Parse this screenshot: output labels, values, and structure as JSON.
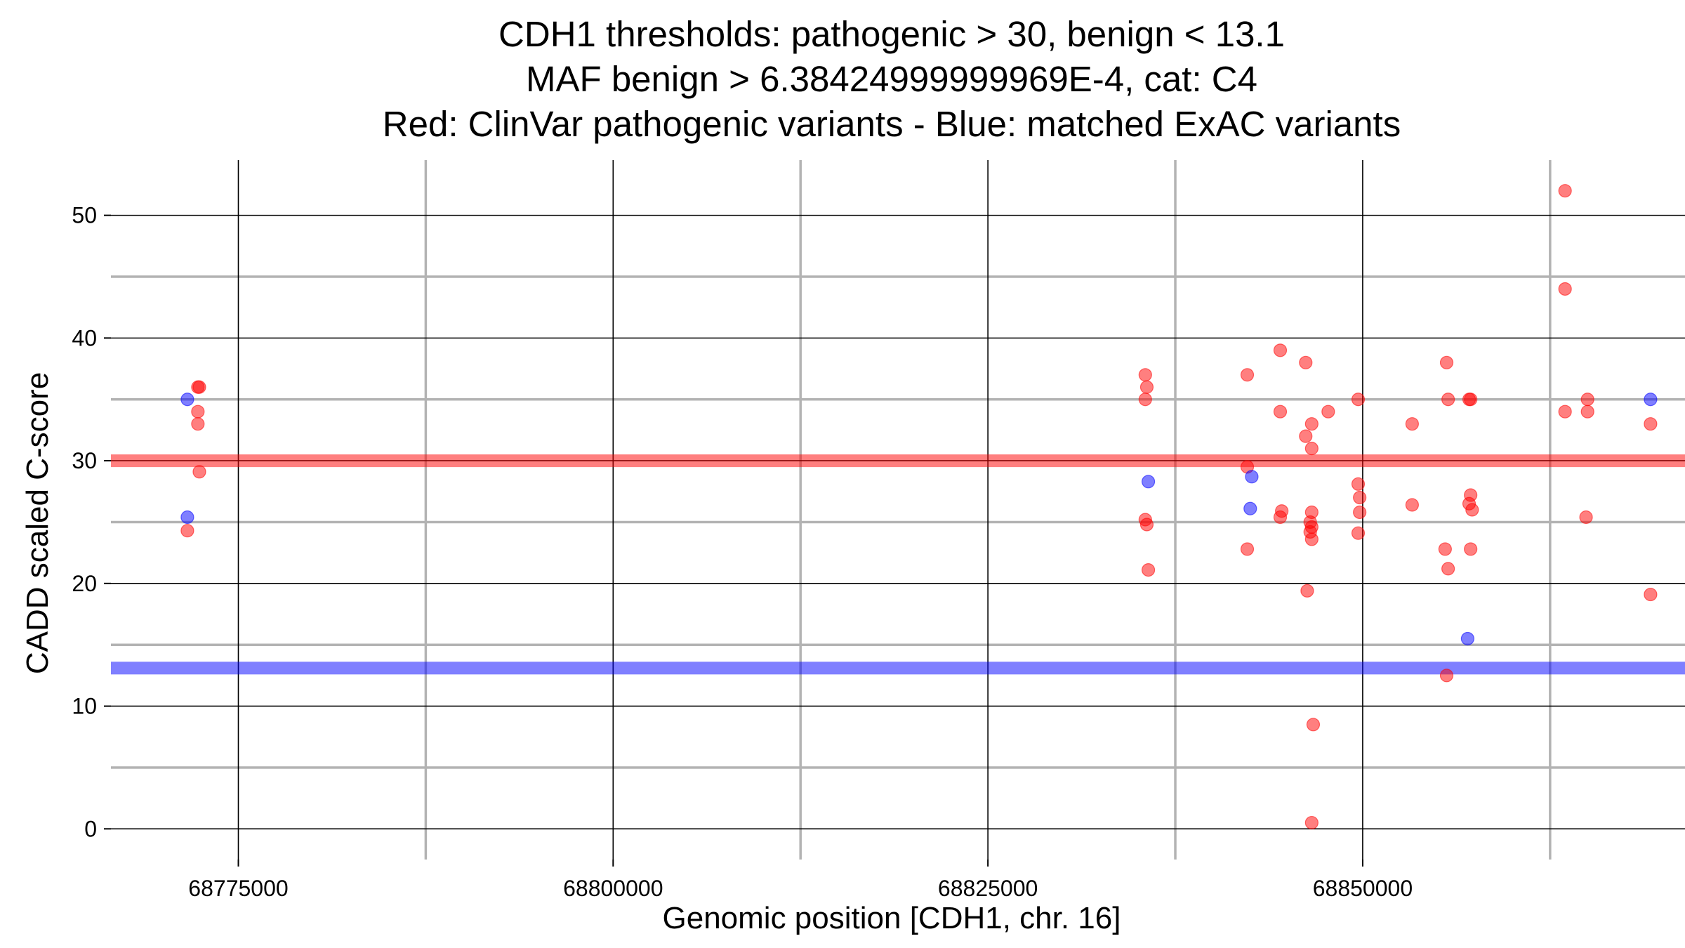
{
  "chart_data": {
    "type": "scatter",
    "title_lines": [
      "CDH1 thresholds: pathogenic > 30, benign < 13.1",
      "MAF benign > 6.38424999999969E-4, cat: C4",
      "Red: ClinVar pathogenic variants - Blue: matched ExAC variants"
    ],
    "xlabel": "Genomic position [CDH1, chr. 16]",
    "ylabel": "CADD scaled C-score",
    "xlim": [
      68766500,
      68871500
    ],
    "ylim": [
      -2.5,
      54.5
    ],
    "x_major_ticks": [
      68775000,
      68800000,
      68825000,
      68850000
    ],
    "x_tick_labels": [
      "68775000",
      "68800000",
      "68825000",
      "68850000"
    ],
    "x_minor_ticks": [
      68787500,
      68812500,
      68837500,
      68862500
    ],
    "y_major_ticks": [
      0,
      10,
      20,
      30,
      40,
      50
    ],
    "y_tick_labels": [
      "0",
      "10",
      "20",
      "30",
      "40",
      "50"
    ],
    "y_minor_ticks": [
      5,
      15,
      25,
      35,
      45
    ],
    "grid": true,
    "thresholds": [
      {
        "name": "pathogenic",
        "value": 30,
        "color": "#ff0000"
      },
      {
        "name": "benign",
        "value": 13.1,
        "color": "#0000ff"
      }
    ],
    "colors": {
      "pathogenic": "#ff0000",
      "benign": "#0000ff"
    },
    "series": [
      {
        "name": "ClinVar pathogenic variants",
        "color": "#ff0000",
        "points": [
          [
            68772300,
            36
          ],
          [
            68772400,
            36
          ],
          [
            68772300,
            34
          ],
          [
            68772300,
            33
          ],
          [
            68772400,
            29.1
          ],
          [
            68771600,
            24.3
          ],
          [
            68835500,
            37
          ],
          [
            68835600,
            36
          ],
          [
            68835500,
            35
          ],
          [
            68835500,
            25.2
          ],
          [
            68835600,
            24.8
          ],
          [
            68835700,
            21.1
          ],
          [
            68842300,
            37
          ],
          [
            68842300,
            29.5
          ],
          [
            68842300,
            22.8
          ],
          [
            68844500,
            39
          ],
          [
            68844500,
            34
          ],
          [
            68844600,
            25.9
          ],
          [
            68844500,
            25.4
          ],
          [
            68846200,
            38
          ],
          [
            68846200,
            32
          ],
          [
            68846600,
            33
          ],
          [
            68846600,
            31
          ],
          [
            68846600,
            25.8
          ],
          [
            68846500,
            25
          ],
          [
            68846600,
            24.6
          ],
          [
            68846500,
            24.2
          ],
          [
            68846600,
            23.6
          ],
          [
            68846300,
            19.4
          ],
          [
            68846700,
            8.5
          ],
          [
            68846600,
            0.5
          ],
          [
            68847700,
            34
          ],
          [
            68849700,
            35
          ],
          [
            68849700,
            28.1
          ],
          [
            68849800,
            27
          ],
          [
            68849800,
            25.8
          ],
          [
            68849700,
            24.1
          ],
          [
            68853300,
            33
          ],
          [
            68853300,
            26.4
          ],
          [
            68855600,
            38
          ],
          [
            68855700,
            35
          ],
          [
            68855500,
            22.8
          ],
          [
            68855700,
            21.2
          ],
          [
            68855600,
            12.5
          ],
          [
            68857100,
            35
          ],
          [
            68857200,
            35
          ],
          [
            68857200,
            27.2
          ],
          [
            68857100,
            26.5
          ],
          [
            68857300,
            26
          ],
          [
            68857200,
            22.8
          ],
          [
            68863500,
            52
          ],
          [
            68863500,
            44
          ],
          [
            68863500,
            34
          ],
          [
            68865000,
            35
          ],
          [
            68865000,
            34
          ],
          [
            68864900,
            25.4
          ],
          [
            68869200,
            33
          ],
          [
            68869200,
            19.1
          ]
        ]
      },
      {
        "name": "matched ExAC variants",
        "color": "#0000ff",
        "points": [
          [
            68771600,
            35
          ],
          [
            68771600,
            25.4
          ],
          [
            68835700,
            28.3
          ],
          [
            68842600,
            28.7
          ],
          [
            68842500,
            26.1
          ],
          [
            68857000,
            15.5
          ],
          [
            68869200,
            35
          ]
        ]
      }
    ]
  }
}
